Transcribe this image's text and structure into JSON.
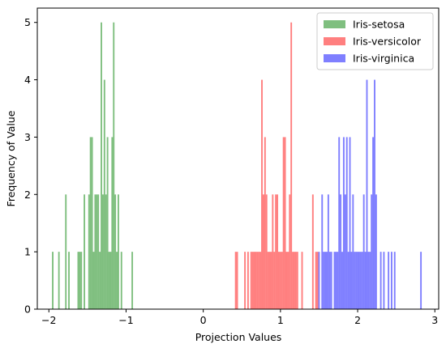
{
  "chart_data": {
    "type": "bar",
    "xlabel": "Projection Values",
    "ylabel": "Frequency of Value",
    "xlim": [
      -2.15,
      3.05
    ],
    "ylim": [
      0,
      5.25
    ],
    "xticks": [
      -2,
      -1,
      0,
      1,
      2,
      3
    ],
    "yticks": [
      0,
      1,
      2,
      3,
      4,
      5
    ],
    "bin_width": 0.02,
    "grid": false,
    "legend_position": "top-right",
    "series": [
      {
        "name": "Iris-setosa",
        "color": "#008000",
        "opacity": 0.5,
        "bins": [
          [
            -1.95,
            1
          ],
          [
            -1.87,
            1
          ],
          [
            -1.78,
            2
          ],
          [
            -1.74,
            1
          ],
          [
            -1.62,
            1
          ],
          [
            -1.6,
            1
          ],
          [
            -1.58,
            1
          ],
          [
            -1.54,
            2
          ],
          [
            -1.48,
            2
          ],
          [
            -1.46,
            3
          ],
          [
            -1.44,
            3
          ],
          [
            -1.42,
            1
          ],
          [
            -1.4,
            2
          ],
          [
            -1.38,
            2
          ],
          [
            -1.36,
            2
          ],
          [
            -1.34,
            1
          ],
          [
            -1.32,
            5
          ],
          [
            -1.3,
            2
          ],
          [
            -1.28,
            4
          ],
          [
            -1.26,
            2
          ],
          [
            -1.24,
            3
          ],
          [
            -1.22,
            1
          ],
          [
            -1.2,
            1
          ],
          [
            -1.18,
            3
          ],
          [
            -1.16,
            5
          ],
          [
            -1.14,
            2
          ],
          [
            -1.12,
            1
          ],
          [
            -1.1,
            2
          ],
          [
            -1.06,
            1
          ],
          [
            -0.92,
            1
          ]
        ]
      },
      {
        "name": "Iris-versicolor",
        "color": "#ff0000",
        "opacity": 0.5,
        "bins": [
          [
            0.42,
            1
          ],
          [
            0.44,
            1
          ],
          [
            0.54,
            1
          ],
          [
            0.58,
            1
          ],
          [
            0.62,
            1
          ],
          [
            0.64,
            1
          ],
          [
            0.66,
            1
          ],
          [
            0.68,
            1
          ],
          [
            0.7,
            1
          ],
          [
            0.72,
            1
          ],
          [
            0.74,
            1
          ],
          [
            0.76,
            4
          ],
          [
            0.78,
            2
          ],
          [
            0.8,
            3
          ],
          [
            0.82,
            2
          ],
          [
            0.84,
            1
          ],
          [
            0.86,
            1
          ],
          [
            0.88,
            1
          ],
          [
            0.9,
            2
          ],
          [
            0.92,
            1
          ],
          [
            0.94,
            2
          ],
          [
            0.96,
            2
          ],
          [
            0.98,
            1
          ],
          [
            1.0,
            1
          ],
          [
            1.02,
            1
          ],
          [
            1.04,
            3
          ],
          [
            1.06,
            3
          ],
          [
            1.08,
            1
          ],
          [
            1.1,
            1
          ],
          [
            1.12,
            2
          ],
          [
            1.14,
            5
          ],
          [
            1.16,
            1
          ],
          [
            1.18,
            1
          ],
          [
            1.2,
            1
          ],
          [
            1.22,
            1
          ],
          [
            1.28,
            1
          ],
          [
            1.42,
            2
          ],
          [
            1.46,
            1
          ],
          [
            1.48,
            1
          ]
        ]
      },
      {
        "name": "Iris-virginica",
        "color": "#0000ff",
        "opacity": 0.5,
        "bins": [
          [
            1.5,
            1
          ],
          [
            1.54,
            2
          ],
          [
            1.56,
            1
          ],
          [
            1.58,
            1
          ],
          [
            1.6,
            1
          ],
          [
            1.62,
            2
          ],
          [
            1.64,
            1
          ],
          [
            1.66,
            1
          ],
          [
            1.7,
            1
          ],
          [
            1.72,
            1
          ],
          [
            1.74,
            1
          ],
          [
            1.76,
            3
          ],
          [
            1.78,
            2
          ],
          [
            1.8,
            1
          ],
          [
            1.82,
            3
          ],
          [
            1.84,
            2
          ],
          [
            1.86,
            3
          ],
          [
            1.88,
            1
          ],
          [
            1.9,
            3
          ],
          [
            1.92,
            1
          ],
          [
            1.94,
            2
          ],
          [
            1.96,
            1
          ],
          [
            1.98,
            1
          ],
          [
            2.0,
            1
          ],
          [
            2.02,
            1
          ],
          [
            2.04,
            1
          ],
          [
            2.06,
            1
          ],
          [
            2.08,
            2
          ],
          [
            2.1,
            1
          ],
          [
            2.12,
            4
          ],
          [
            2.14,
            1
          ],
          [
            2.16,
            1
          ],
          [
            2.18,
            2
          ],
          [
            2.2,
            3
          ],
          [
            2.22,
            4
          ],
          [
            2.24,
            2
          ],
          [
            2.3,
            1
          ],
          [
            2.34,
            1
          ],
          [
            2.4,
            1
          ],
          [
            2.44,
            1
          ],
          [
            2.48,
            1
          ],
          [
            2.82,
            1
          ]
        ]
      }
    ]
  }
}
